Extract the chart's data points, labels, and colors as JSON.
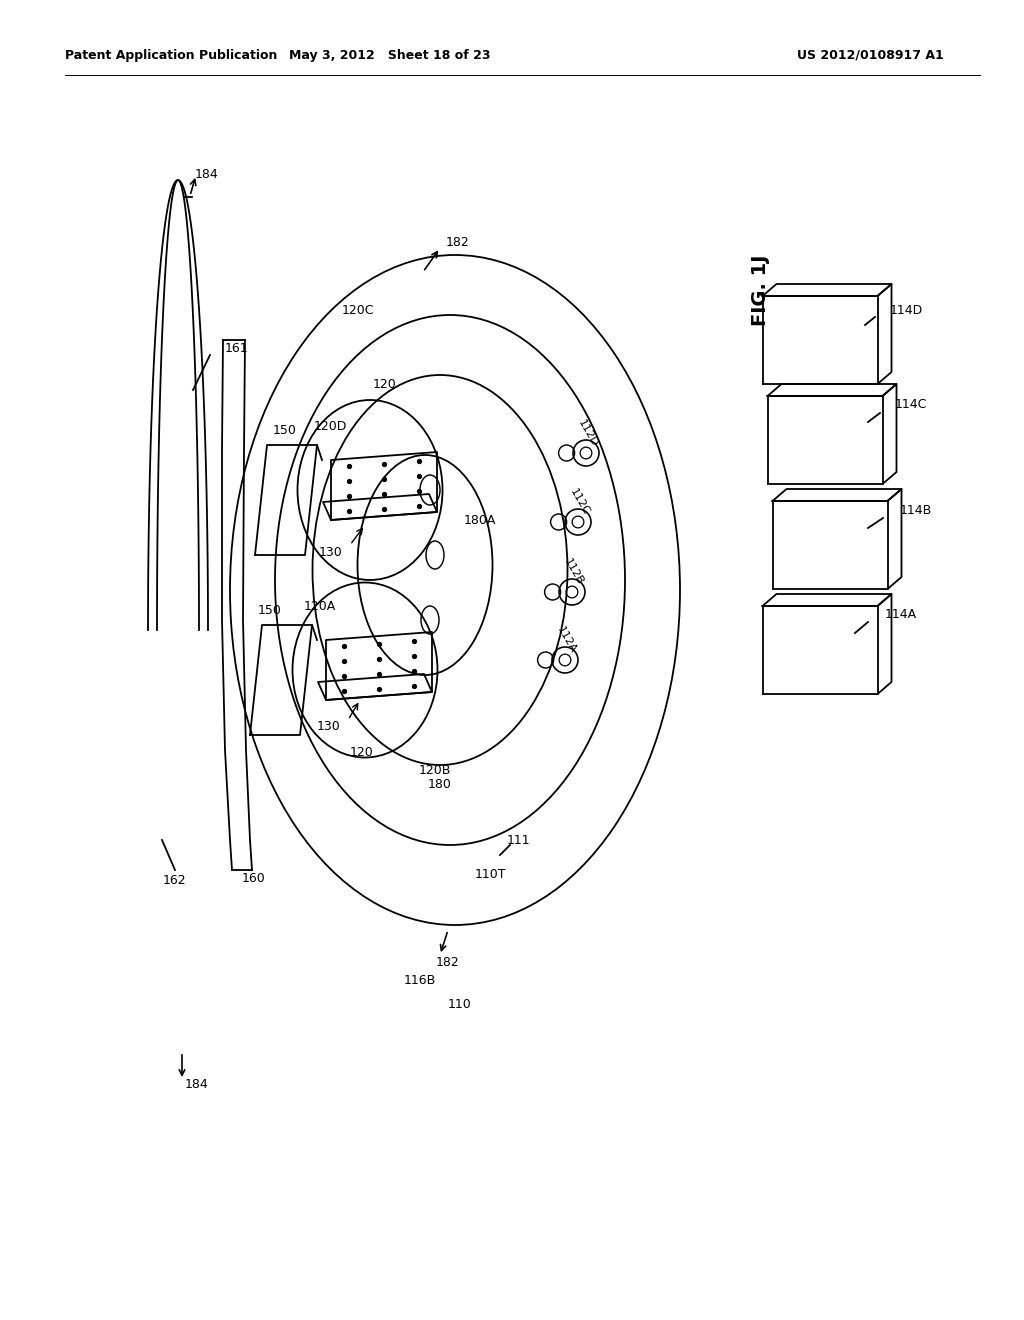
{
  "header_left": "Patent Application Publication",
  "header_mid": "May 3, 2012   Sheet 18 of 23",
  "header_right": "US 2012/0108917 A1",
  "fig_label": "FIG. 1J",
  "bg_color": "#ffffff",
  "line_color": "#000000"
}
